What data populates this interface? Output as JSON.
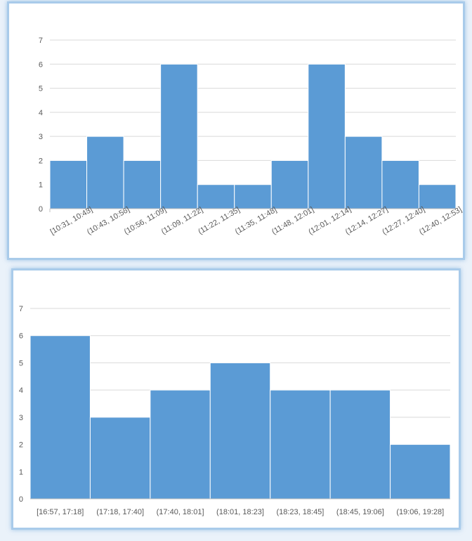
{
  "chart_data": [
    {
      "type": "bar",
      "categories": [
        "[10:31, 10:43]",
        "(10:43, 10:56]",
        "(10:56, 11:09]",
        "(11:09, 11:22]",
        "(11:22, 11:35]",
        "(11:35, 11:48]",
        "(11:48, 12:01]",
        "(12:01, 12:14]",
        "(12:14, 12:27]",
        "(12:27, 12:40]",
        "(12:40, 12:53]"
      ],
      "values": [
        2,
        3,
        2,
        6,
        1,
        1,
        2,
        6,
        3,
        2,
        1
      ],
      "y_ticks": [
        "0",
        "1",
        "2",
        "3",
        "4",
        "5",
        "6",
        "7"
      ],
      "ylim": [
        0,
        7
      ],
      "grid": true,
      "bar_color": "#5b9bd5",
      "title": "",
      "xlabel": "",
      "ylabel": ""
    },
    {
      "type": "bar",
      "categories": [
        "[16:57, 17:18]",
        "(17:18, 17:40]",
        "(17:40, 18:01]",
        "(18:01, 18:23]",
        "(18:23, 18:45]",
        "(18:45, 19:06]",
        "(19:06, 19:28]"
      ],
      "values": [
        6,
        3,
        4,
        5,
        4,
        4,
        2
      ],
      "y_ticks": [
        "0",
        "1",
        "2",
        "3",
        "4",
        "5",
        "6",
        "7"
      ],
      "ylim": [
        0,
        7
      ],
      "grid": true,
      "bar_color": "#5b9bd5",
      "title": "",
      "xlabel": "",
      "ylabel": ""
    }
  ]
}
